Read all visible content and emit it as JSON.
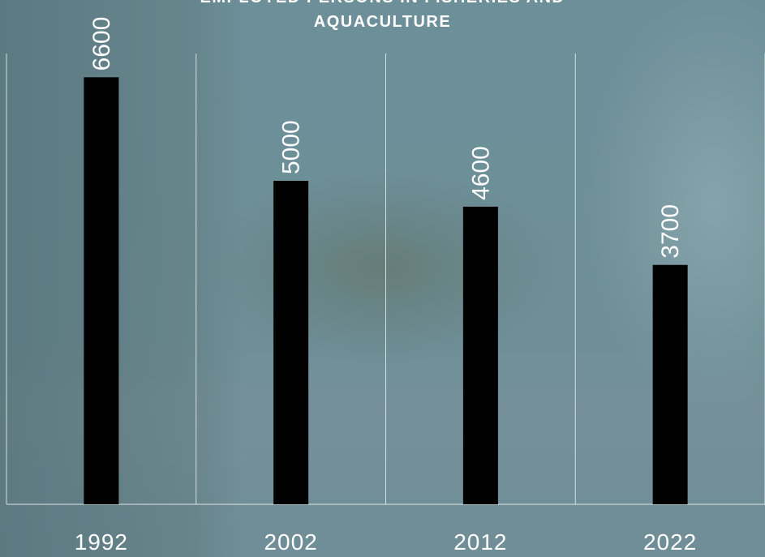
{
  "chart_data": {
    "type": "bar",
    "title": "EMPLOYED PERSONS IN FISHERIES AND AQUACULTURE",
    "title_line1": "EMPLOYED PERSONS IN FISHERIES AND",
    "title_line2": "AQUACULTURE",
    "categories": [
      "1992",
      "2002",
      "2012",
      "2022"
    ],
    "values": [
      6600,
      5000,
      4600,
      3700
    ],
    "data_labels": [
      "6600",
      "5000",
      "4600",
      "3700"
    ],
    "xlabel": "",
    "ylabel": "",
    "ylim": [
      0,
      7000
    ],
    "grid": "vertical category separators",
    "legend": "none",
    "bar_color": "#000000",
    "text_color": "#ffffff",
    "gridline_color": "#e6eef0"
  }
}
